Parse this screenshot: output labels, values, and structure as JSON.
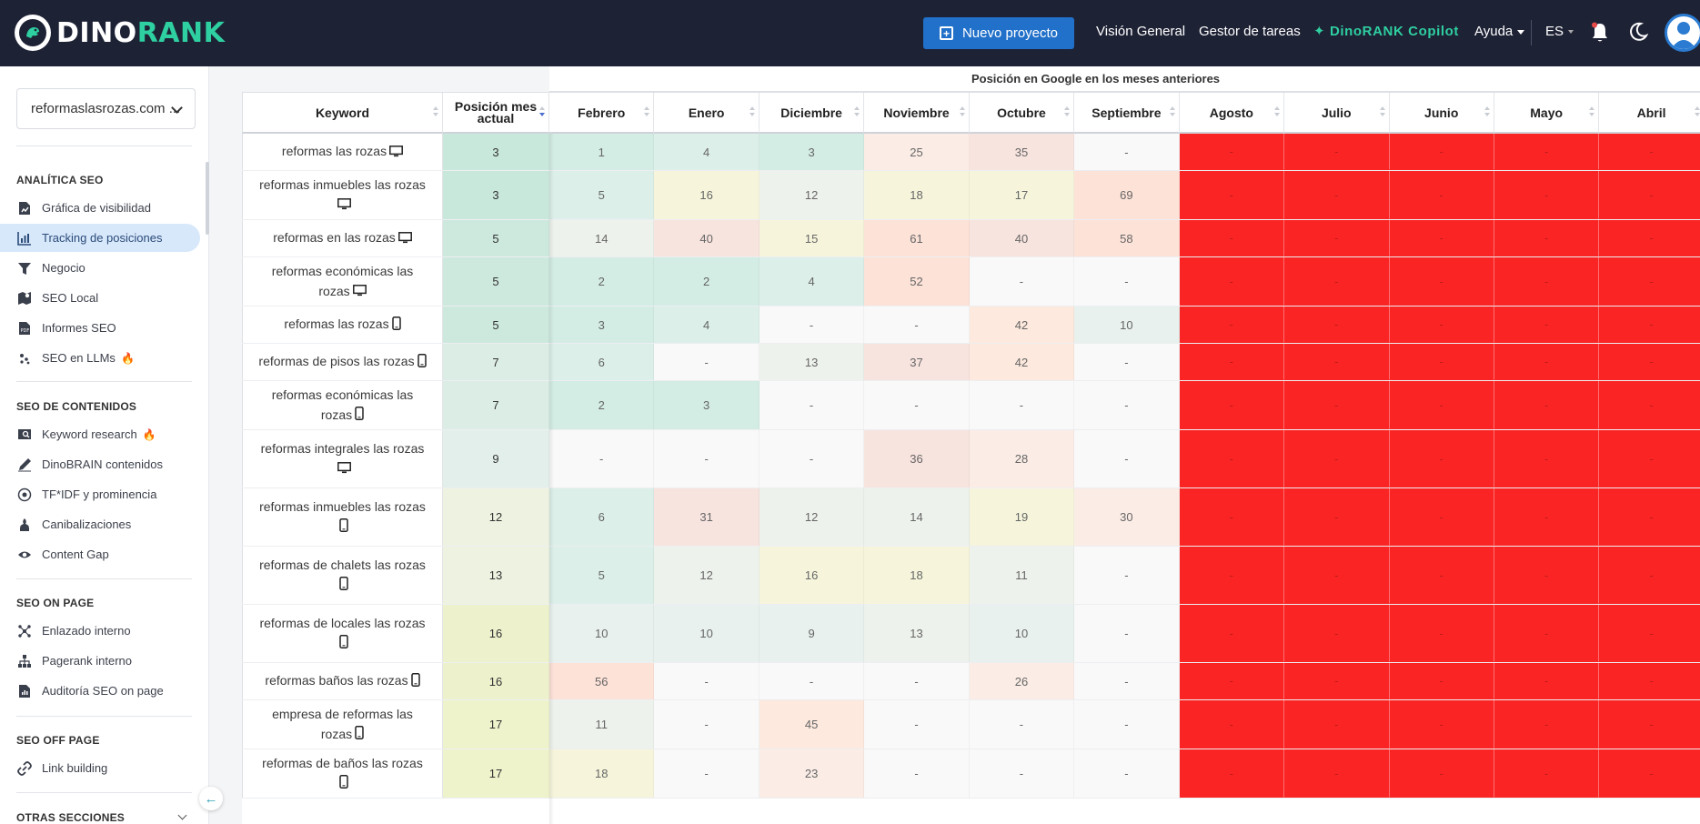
{
  "app": {
    "logo_text_a": "DINO",
    "logo_text_b": "RANK"
  },
  "topbar": {
    "new_project": "Nuevo proyecto",
    "nav": [
      "Visión General",
      "Gestor de tareas"
    ],
    "copilot": "DinoRANK Copilot",
    "help": "Ayuda",
    "lang": "ES"
  },
  "sidebar": {
    "project": "reformaslasrozas.com ...",
    "sections": [
      {
        "title": "ANALÍTICA SEO",
        "items": [
          {
            "label": "Gráfica de visibilidad",
            "icon": "visibility-chart-icon"
          },
          {
            "label": "Tracking de posiciones",
            "icon": "bar-chart-icon",
            "active": true
          },
          {
            "label": "Negocio",
            "icon": "funnel-icon"
          },
          {
            "label": "SEO Local",
            "icon": "map-pin-icon"
          },
          {
            "label": "Informes SEO",
            "icon": "pdf-icon"
          },
          {
            "label": "SEO en LLMs",
            "icon": "llm-dots-icon",
            "fire": true
          }
        ]
      },
      {
        "title": "SEO DE CONTENIDOS",
        "items": [
          {
            "label": "Keyword research",
            "icon": "keyword-research-icon",
            "fire": true
          },
          {
            "label": "DinoBRAIN contenidos",
            "icon": "pen-icon"
          },
          {
            "label": "TF*IDF y prominencia",
            "icon": "tfidf-icon"
          },
          {
            "label": "Canibalizaciones",
            "icon": "cannibal-icon"
          },
          {
            "label": "Content Gap",
            "icon": "eye-icon"
          }
        ]
      },
      {
        "title": "SEO ON PAGE",
        "items": [
          {
            "label": "Enlazado interno",
            "icon": "internal-link-icon"
          },
          {
            "label": "Pagerank interno",
            "icon": "sitemap-icon"
          },
          {
            "label": "Auditoría SEO on page",
            "icon": "audit-icon"
          }
        ]
      },
      {
        "title": "SEO OFF PAGE",
        "items": [
          {
            "label": "Link building",
            "icon": "link-icon"
          }
        ]
      },
      {
        "title": "OTRAS SECCIONES",
        "items": []
      }
    ]
  },
  "table": {
    "group_header": "Posición en Google en los meses anteriores",
    "headers": {
      "keyword": "Keyword",
      "current_line1": "Posición mes",
      "current_line2": "actual",
      "months": [
        "Febrero",
        "Enero",
        "Diciembre",
        "Noviembre",
        "Octubre",
        "Septiembre",
        "Agosto",
        "Julio",
        "Junio",
        "Mayo",
        "Abril"
      ]
    },
    "rows": [
      {
        "keyword": "reformas las rozas",
        "device": "desktop",
        "current": "3",
        "months": [
          "1",
          "4",
          "3",
          "25",
          "35",
          "-",
          "-",
          "-",
          "-",
          "-",
          "-"
        ]
      },
      {
        "keyword": "reformas inmuebles las rozas",
        "device": "desktop",
        "current": "3",
        "months": [
          "5",
          "16",
          "12",
          "18",
          "17",
          "69",
          "-",
          "-",
          "-",
          "-",
          "-"
        ]
      },
      {
        "keyword": "reformas en las rozas",
        "device": "desktop",
        "current": "5",
        "months": [
          "14",
          "40",
          "15",
          "61",
          "40",
          "58",
          "-",
          "-",
          "-",
          "-",
          "-"
        ]
      },
      {
        "keyword": "reformas económicas las rozas",
        "device": "desktop",
        "current": "5",
        "months": [
          "2",
          "2",
          "4",
          "52",
          "-",
          "-",
          "-",
          "-",
          "-",
          "-",
          "-"
        ]
      },
      {
        "keyword": "reformas las rozas",
        "device": "mobile",
        "current": "5",
        "months": [
          "3",
          "4",
          "-",
          "-",
          "42",
          "10",
          "-",
          "-",
          "-",
          "-",
          "-"
        ]
      },
      {
        "keyword": "reformas de pisos las rozas",
        "device": "mobile",
        "current": "7",
        "months": [
          "6",
          "-",
          "13",
          "37",
          "42",
          "-",
          "-",
          "-",
          "-",
          "-",
          "-"
        ]
      },
      {
        "keyword": "reformas económicas las rozas",
        "device": "mobile",
        "current": "7",
        "months": [
          "2",
          "3",
          "-",
          "-",
          "-",
          "-",
          "-",
          "-",
          "-",
          "-",
          "-"
        ]
      },
      {
        "keyword": "reformas integrales las rozas",
        "device": "desktop",
        "current": "9",
        "months": [
          "-",
          "-",
          "-",
          "36",
          "28",
          "-",
          "-",
          "-",
          "-",
          "-",
          "-"
        ]
      },
      {
        "keyword": "reformas inmuebles las rozas",
        "device": "mobile",
        "current": "12",
        "months": [
          "6",
          "31",
          "12",
          "14",
          "19",
          "30",
          "-",
          "-",
          "-",
          "-",
          "-"
        ]
      },
      {
        "keyword": "reformas de chalets las rozas",
        "device": "mobile",
        "current": "13",
        "months": [
          "5",
          "12",
          "16",
          "18",
          "11",
          "-",
          "-",
          "-",
          "-",
          "-",
          "-"
        ]
      },
      {
        "keyword": "reformas de locales las rozas",
        "device": "mobile",
        "current": "16",
        "months": [
          "10",
          "10",
          "9",
          "13",
          "10",
          "-",
          "-",
          "-",
          "-",
          "-",
          "-"
        ]
      },
      {
        "keyword": "reformas baños las rozas",
        "device": "mobile",
        "current": "16",
        "months": [
          "56",
          "-",
          "-",
          "-",
          "26",
          "-",
          "-",
          "-",
          "-",
          "-",
          "-"
        ]
      },
      {
        "keyword": "empresa de reformas las rozas",
        "device": "mobile",
        "current": "17",
        "months": [
          "11",
          "-",
          "45",
          "-",
          "-",
          "-",
          "-",
          "-",
          "-",
          "-",
          "-"
        ]
      },
      {
        "keyword": "reformas de baños las rozas",
        "device": "mobile",
        "current": "17",
        "months": [
          "18",
          "-",
          "23",
          "-",
          "-",
          "-",
          "-",
          "-",
          "-",
          "-",
          "-"
        ]
      }
    ]
  }
}
